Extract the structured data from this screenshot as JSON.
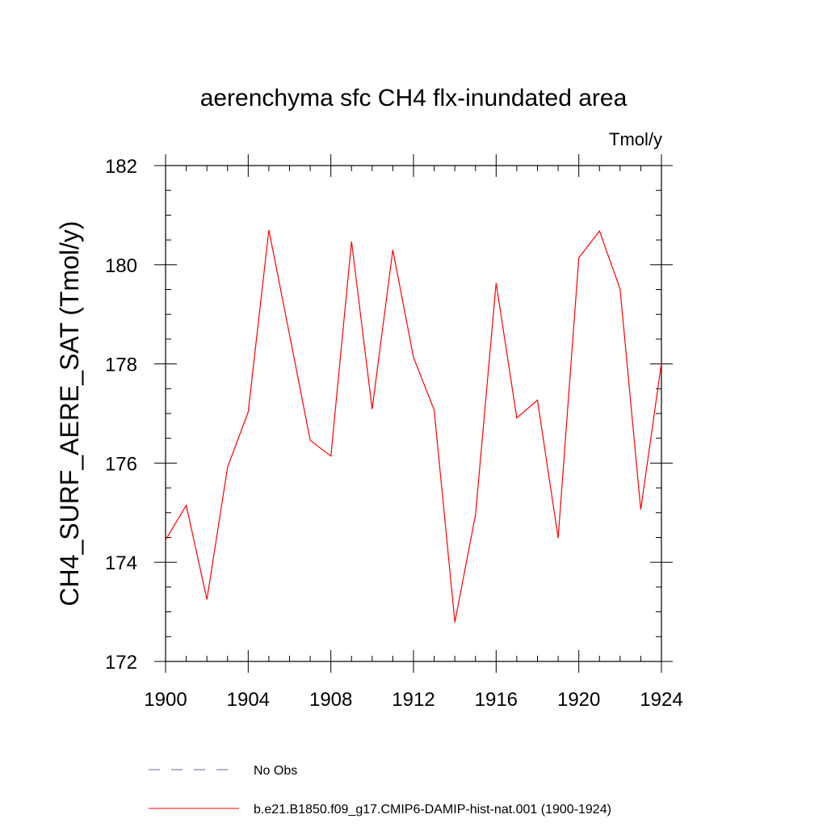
{
  "chart_data": {
    "type": "line",
    "title": "aerenchyma sfc CH4 flx-inundated area",
    "units": "Tmol/y",
    "ylabel": "CH4_SURF_AERE_SAT  (Tmol/y)",
    "xlim": [
      1900,
      1924
    ],
    "ylim": [
      172,
      182
    ],
    "x_ticks": [
      "1900",
      "1904",
      "1908",
      "1912",
      "1916",
      "1920",
      "1924"
    ],
    "y_ticks": [
      "172",
      "174",
      "176",
      "178",
      "180",
      "182"
    ],
    "grid": false,
    "series": [
      {
        "name": "b.e21.B1850.f09_g17.CMIP6-DAMIP-hist-nat.001 (1900-1924)",
        "color": "#ff0000",
        "x": [
          1900,
          1901,
          1902,
          1903,
          1904,
          1905,
          1906,
          1907,
          1908,
          1909,
          1910,
          1911,
          1912,
          1913,
          1914,
          1915,
          1916,
          1917,
          1918,
          1919,
          1920,
          1921,
          1922,
          1923,
          1924
        ],
        "y": [
          174.45,
          175.15,
          173.25,
          175.92,
          177.03,
          180.7,
          178.59,
          176.46,
          176.14,
          180.47,
          177.09,
          180.3,
          178.13,
          177.07,
          172.79,
          174.96,
          179.63,
          176.91,
          177.27,
          174.49,
          180.14,
          180.68,
          179.51,
          175.06,
          178.02
        ]
      }
    ],
    "legend": {
      "placement": "bottom",
      "entries": [
        {
          "label": "No Obs",
          "style": "dashed",
          "color": "#6666aa"
        },
        {
          "label": "b.e21.B1850.f09_g17.CMIP6-DAMIP-hist-nat.001 (1900-1924)",
          "style": "solid",
          "color": "#ff0000"
        }
      ]
    }
  }
}
